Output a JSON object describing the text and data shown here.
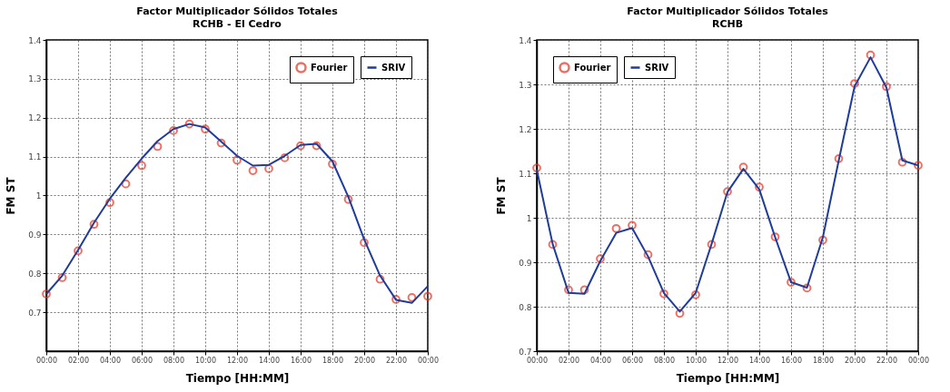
{
  "chart_data": [
    {
      "type": "line",
      "title": "Factor Multiplicador Sólidos Totales",
      "subtitle": "RCHB - El Cedro",
      "xlabel": "Tiempo [HH:MM]",
      "ylabel": "FM ST",
      "x": [
        0,
        1,
        2,
        3,
        4,
        5,
        6,
        7,
        8,
        9,
        10,
        11,
        12,
        13,
        14,
        15,
        16,
        17,
        18,
        19,
        20,
        21,
        22,
        23,
        24
      ],
      "series": [
        {
          "name": "Fourier",
          "type": "scatter",
          "marker": "circle",
          "color": "#e8311f",
          "values": [
            0.747,
            0.789,
            0.858,
            0.926,
            0.982,
            1.03,
            1.077,
            1.126,
            1.167,
            1.184,
            1.171,
            1.135,
            1.091,
            1.064,
            1.069,
            1.097,
            1.128,
            1.128,
            1.081,
            0.99,
            0.879,
            0.785,
            0.733,
            0.738,
            0.741
          ]
        },
        {
          "name": "SRIV",
          "type": "line",
          "line_style": "solid",
          "color": "#1f3c9c",
          "values": [
            0.747,
            0.794,
            0.86,
            0.93,
            0.992,
            1.046,
            1.095,
            1.14,
            1.171,
            1.184,
            1.175,
            1.139,
            1.102,
            1.077,
            1.079,
            1.102,
            1.13,
            1.133,
            1.088,
            0.997,
            0.887,
            0.794,
            0.732,
            0.724,
            0.767
          ]
        }
      ],
      "xlim": [
        0,
        24
      ],
      "xticks": [
        {
          "value": 0,
          "label": "00:00"
        },
        {
          "value": 2,
          "label": "02:00"
        },
        {
          "value": 4,
          "label": "04:00"
        },
        {
          "value": 6,
          "label": "06:00"
        },
        {
          "value": 8,
          "label": "08:00"
        },
        {
          "value": 10,
          "label": "10:00"
        },
        {
          "value": 12,
          "label": "12:00"
        },
        {
          "value": 14,
          "label": "14:00"
        },
        {
          "value": 16,
          "label": "16:00"
        },
        {
          "value": 18,
          "label": "18:00"
        },
        {
          "value": 20,
          "label": "20:00"
        },
        {
          "value": 22,
          "label": "22:00"
        },
        {
          "value": 24,
          "label": "00:00"
        }
      ],
      "ylim": [
        0.6,
        1.4
      ],
      "yticks": [
        0.7,
        0.8,
        0.9,
        {
          "value": 1,
          "label": "1"
        },
        1.1,
        1.2,
        1.3,
        1.4
      ],
      "grid": true,
      "legend": "top right"
    },
    {
      "type": "line",
      "title": "Factor Multiplicador Sólidos Totales",
      "subtitle": "RCHB",
      "xlabel": "Tiempo [HH:MM]",
      "ylabel": "FM ST",
      "x": [
        0,
        1,
        2,
        3,
        4,
        5,
        6,
        7,
        8,
        9,
        10,
        11,
        12,
        13,
        14,
        15,
        16,
        17,
        18,
        19,
        20,
        21,
        22,
        23,
        24
      ],
      "series": [
        {
          "name": "Fourier",
          "type": "scatter",
          "marker": "circle",
          "color": "#e8311f",
          "values": [
            1.112,
            0.94,
            0.838,
            0.838,
            0.908,
            0.976,
            0.983,
            0.917,
            0.829,
            0.785,
            0.827,
            0.94,
            1.059,
            1.114,
            1.069,
            0.957,
            0.855,
            0.842,
            0.95,
            1.133,
            1.302,
            1.366,
            1.295,
            1.125,
            1.118
          ]
        },
        {
          "name": "SRIV",
          "type": "line",
          "line_style": "solid",
          "color": "#1f3c9c",
          "values": [
            1.108,
            0.941,
            0.831,
            0.829,
            0.903,
            0.966,
            0.977,
            0.913,
            0.831,
            0.789,
            0.831,
            0.941,
            1.058,
            1.11,
            1.064,
            0.956,
            0.855,
            0.843,
            0.956,
            1.129,
            1.296,
            1.361,
            1.293,
            1.129,
            1.118
          ]
        }
      ],
      "xlim": [
        0,
        24
      ],
      "xticks": [
        {
          "value": 0,
          "label": "00:00"
        },
        {
          "value": 2,
          "label": "02:00"
        },
        {
          "value": 4,
          "label": "04:00"
        },
        {
          "value": 6,
          "label": "06:00"
        },
        {
          "value": 8,
          "label": "08:00"
        },
        {
          "value": 10,
          "label": "10:00"
        },
        {
          "value": 12,
          "label": "12:00"
        },
        {
          "value": 14,
          "label": "14:00"
        },
        {
          "value": 16,
          "label": "16:00"
        },
        {
          "value": 18,
          "label": "18:00"
        },
        {
          "value": 20,
          "label": "20:00"
        },
        {
          "value": 22,
          "label": "22:00"
        },
        {
          "value": 24,
          "label": "00:00"
        }
      ],
      "ylim": [
        0.7,
        1.4
      ],
      "yticks": [
        0.7,
        0.8,
        0.9,
        {
          "value": 1,
          "label": "1"
        },
        1.1,
        1.2,
        1.3,
        1.4
      ],
      "grid": true,
      "legend": "top left"
    }
  ]
}
